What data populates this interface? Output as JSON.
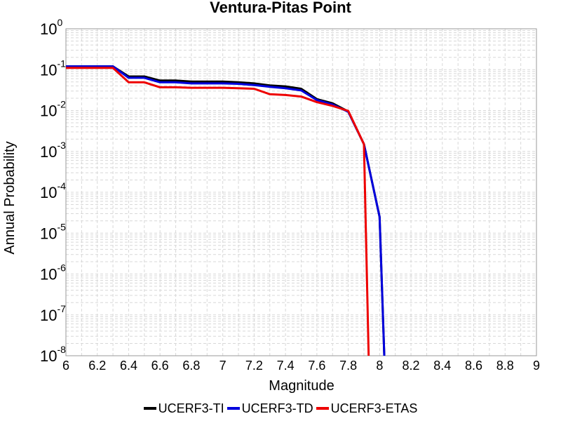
{
  "chart_data": {
    "type": "line",
    "title": "Ventura-Pitas Point",
    "xlabel": "Magnitude",
    "ylabel": "Annual Probability",
    "xlim": [
      6,
      9
    ],
    "ylim": [
      1e-08,
      1
    ],
    "yscale": "log",
    "grid": true,
    "legend_position": "bottom-center",
    "x_ticks": [
      "6",
      "6.2",
      "6.4",
      "6.6",
      "6.8",
      "7",
      "7.2",
      "7.4",
      "7.6",
      "7.8",
      "8",
      "8.2",
      "8.4",
      "8.6",
      "8.8",
      "9"
    ],
    "y_ticks": [
      {
        "base": "10",
        "exp": "0"
      },
      {
        "base": "10",
        "exp": "-1"
      },
      {
        "base": "10",
        "exp": "-2"
      },
      {
        "base": "10",
        "exp": "-3"
      },
      {
        "base": "10",
        "exp": "-4"
      },
      {
        "base": "10",
        "exp": "-5"
      },
      {
        "base": "10",
        "exp": "-6"
      },
      {
        "base": "10",
        "exp": "-7"
      },
      {
        "base": "10",
        "exp": "-8"
      }
    ],
    "series": [
      {
        "name": "UCERF3-TI",
        "color": "#000000",
        "x": [
          6.0,
          6.1,
          6.2,
          6.3,
          6.4,
          6.5,
          6.6,
          6.7,
          6.8,
          6.9,
          7.0,
          7.1,
          7.2,
          7.3,
          7.4,
          7.5,
          7.6,
          7.7,
          7.8,
          7.9,
          8.0,
          8.03
        ],
        "y": [
          0.12,
          0.12,
          0.12,
          0.12,
          0.068,
          0.068,
          0.054,
          0.054,
          0.051,
          0.051,
          0.051,
          0.049,
          0.046,
          0.041,
          0.039,
          0.034,
          0.019,
          0.015,
          0.0095,
          0.0015,
          2.5e-05,
          1e-08
        ]
      },
      {
        "name": "UCERF3-TD",
        "color": "#0000dd",
        "x": [
          6.0,
          6.1,
          6.2,
          6.3,
          6.4,
          6.5,
          6.6,
          6.7,
          6.8,
          6.9,
          7.0,
          7.1,
          7.2,
          7.3,
          7.4,
          7.5,
          7.6,
          7.7,
          7.8,
          7.9,
          8.0,
          8.03
        ],
        "y": [
          0.12,
          0.12,
          0.12,
          0.12,
          0.063,
          0.063,
          0.049,
          0.049,
          0.046,
          0.046,
          0.046,
          0.045,
          0.042,
          0.038,
          0.035,
          0.031,
          0.018,
          0.014,
          0.0093,
          0.0015,
          2.5e-05,
          1e-08
        ]
      },
      {
        "name": "UCERF3-ETAS",
        "color": "#ee0000",
        "x": [
          6.0,
          6.1,
          6.2,
          6.3,
          6.4,
          6.5,
          6.6,
          6.7,
          6.8,
          6.9,
          7.0,
          7.1,
          7.2,
          7.3,
          7.4,
          7.5,
          7.6,
          7.7,
          7.8,
          7.9,
          7.93
        ],
        "y": [
          0.11,
          0.11,
          0.11,
          0.11,
          0.049,
          0.049,
          0.037,
          0.037,
          0.036,
          0.036,
          0.036,
          0.035,
          0.034,
          0.025,
          0.024,
          0.022,
          0.016,
          0.013,
          0.0098,
          0.0015,
          1e-08
        ]
      }
    ]
  }
}
